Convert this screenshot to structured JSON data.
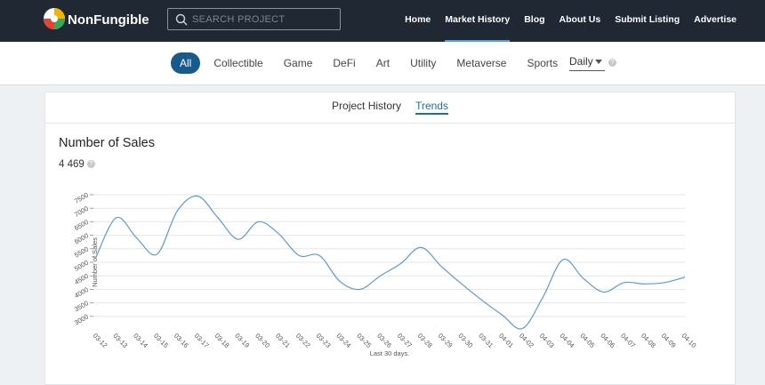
{
  "header": {
    "logo": "NonFungible",
    "search_placeholder": "SEARCH PROJECT",
    "nav": [
      "Home",
      "Market History",
      "Blog",
      "About Us",
      "Submit Listing",
      "Advertise"
    ],
    "active": "Market History"
  },
  "filters": {
    "categories": [
      "All",
      "Collectible",
      "Game",
      "DeFi",
      "Art",
      "Utility",
      "Metaverse",
      "Sports"
    ],
    "active": "All",
    "period": "Daily"
  },
  "tabs": {
    "items": [
      "Project History",
      "Trends"
    ],
    "active": "Trends"
  },
  "chart_data": {
    "type": "line",
    "title": "Number of Sales",
    "summary": "4 469",
    "y_label": "Number of Sales",
    "x_label": "Last 30 days.",
    "color": "#5b9bd5",
    "grid": true,
    "categories": [
      "03-12",
      "03-13",
      "03-14",
      "03-15",
      "03-16",
      "03-17",
      "03-18",
      "03-19",
      "03-20",
      "03-21",
      "03-22",
      "03-23",
      "03-24",
      "03-25",
      "03-26",
      "03-27",
      "03-28",
      "03-29",
      "03-30",
      "03-31",
      "04-01",
      "04-02",
      "04-03",
      "04-04",
      "04-05",
      "04-06",
      "04-07",
      "04-08",
      "04-09",
      "04-10"
    ],
    "values": [
      5200,
      6650,
      5900,
      5300,
      6900,
      7450,
      6650,
      5850,
      6500,
      6050,
      5250,
      5250,
      4300,
      4000,
      4500,
      4950,
      5550,
      4850,
      4200,
      3600,
      3050,
      2550,
      3700,
      5100,
      4400,
      3900,
      4250,
      4200,
      4250,
      4450
    ],
    "ylim": [
      2500,
      7500
    ],
    "yticks": [
      3000,
      3500,
      4000,
      4500,
      5000,
      5500,
      6000,
      6500,
      7000,
      7500
    ]
  }
}
